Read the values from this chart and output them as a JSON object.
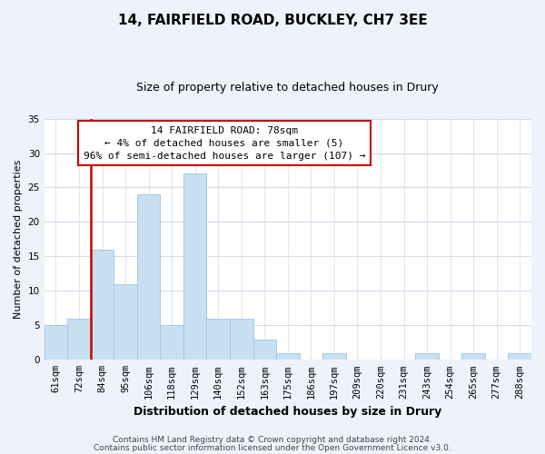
{
  "title": "14, FAIRFIELD ROAD, BUCKLEY, CH7 3EE",
  "subtitle": "Size of property relative to detached houses in Drury",
  "xlabel": "Distribution of detached houses by size in Drury",
  "ylabel": "Number of detached properties",
  "bin_labels": [
    "61sqm",
    "72sqm",
    "84sqm",
    "95sqm",
    "106sqm",
    "118sqm",
    "129sqm",
    "140sqm",
    "152sqm",
    "163sqm",
    "175sqm",
    "186sqm",
    "197sqm",
    "209sqm",
    "220sqm",
    "231sqm",
    "243sqm",
    "254sqm",
    "265sqm",
    "277sqm",
    "288sqm"
  ],
  "bar_heights": [
    5,
    6,
    16,
    11,
    24,
    5,
    27,
    6,
    6,
    3,
    1,
    0,
    1,
    0,
    0,
    0,
    1,
    0,
    1,
    0,
    1
  ],
  "bar_color": "#c9dff2",
  "bar_edge_color": "#a8c8e8",
  "vline_color": "#cc0000",
  "ylim": [
    0,
    35
  ],
  "yticks": [
    0,
    5,
    10,
    15,
    20,
    25,
    30,
    35
  ],
  "annotation_title": "14 FAIRFIELD ROAD: 78sqm",
  "annotation_line1": "← 4% of detached houses are smaller (5)",
  "annotation_line2": "96% of semi-detached houses are larger (107) →",
  "footer1": "Contains HM Land Registry data © Crown copyright and database right 2024.",
  "footer2": "Contains public sector information licensed under the Open Government Licence v3.0.",
  "bg_color": "#eef2fb",
  "plot_bg_color": "#ffffff",
  "grid_color": "#d0dce8",
  "title_fontsize": 11,
  "subtitle_fontsize": 9,
  "ylabel_fontsize": 8,
  "xlabel_fontsize": 9,
  "tick_fontsize": 7.5,
  "footer_fontsize": 6.5
}
